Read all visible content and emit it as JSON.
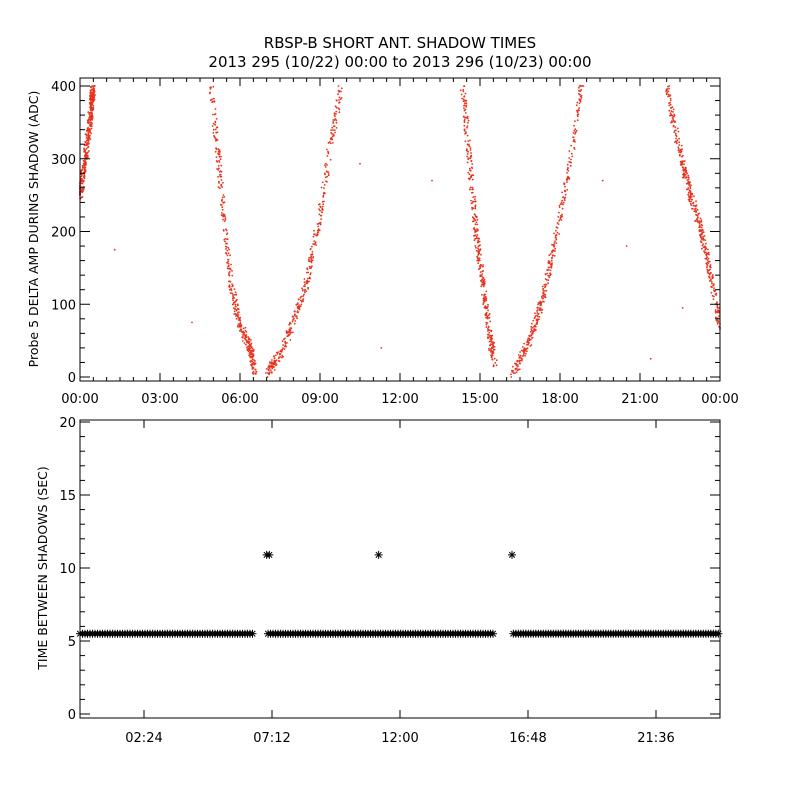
{
  "chart_data": [
    {
      "type": "scatter",
      "title": "RBSP-B SHORT ANT. SHADOW TIMES",
      "subtitle": "2013 295 (10/22) 00:00 to 2013 296 (10/23) 00:00",
      "xlabel": "",
      "ylabel": "Probe 5 DELTA AMP DURING SHADOW (ADC)",
      "xlim": [
        0,
        24
      ],
      "ylim": [
        0,
        400
      ],
      "x_unit": "hours",
      "xticks": [
        0,
        3,
        6,
        9,
        12,
        15,
        18,
        21,
        24
      ],
      "xtick_labels": [
        "00:00",
        "03:00",
        "06:00",
        "09:00",
        "12:00",
        "15:00",
        "18:00",
        "21:00",
        "00:00"
      ],
      "yticks": [
        0,
        100,
        200,
        300,
        400
      ],
      "ytick_labels": [
        "0",
        "100",
        "200",
        "300",
        "400"
      ],
      "grid": false,
      "marker": "dot",
      "color": "#e8321e",
      "series": [
        {
          "x": [
            0.0,
            0.2,
            0.4,
            0.5
          ],
          "y": [
            250,
            300,
            360,
            400
          ]
        },
        {
          "x": [
            4.9,
            5.2,
            5.45,
            5.7,
            6.0,
            6.4,
            6.55
          ],
          "y": [
            400,
            300,
            200,
            120,
            70,
            40,
            5
          ]
        },
        {
          "x": [
            7.0,
            7.5,
            8.0,
            8.5,
            9.0,
            9.4,
            9.8
          ],
          "y": [
            5,
            30,
            75,
            130,
            220,
            320,
            400
          ]
        },
        {
          "x": [
            14.35,
            14.6,
            14.85,
            15.1,
            15.35,
            15.55
          ],
          "y": [
            400,
            300,
            200,
            130,
            60,
            20
          ]
        },
        {
          "x": [
            16.25,
            16.8,
            17.3,
            17.8,
            18.3,
            18.8
          ],
          "y": [
            5,
            45,
            100,
            180,
            280,
            400
          ]
        },
        {
          "x": [
            22.0,
            22.5,
            22.9,
            23.3,
            23.7,
            24.0
          ],
          "y": [
            400,
            310,
            250,
            200,
            130,
            70
          ]
        }
      ],
      "outliers": {
        "x": [
          1.3,
          4.2,
          10.5,
          11.3,
          13.2,
          19.6,
          20.5,
          21.4,
          22.6
        ],
        "y": [
          175,
          75,
          293,
          40,
          270,
          270,
          180,
          25,
          95
        ]
      }
    },
    {
      "type": "scatter",
      "title": "",
      "xlabel": "",
      "ylabel": "TIME BETWEEN SHADOWS (SEC)",
      "xlim": [
        0,
        24
      ],
      "ylim": [
        0,
        20
      ],
      "x_unit": "hours",
      "xticks": [
        2.4,
        7.2,
        12.0,
        16.8,
        21.6
      ],
      "xtick_labels": [
        "02:24",
        "07:12",
        "12:00",
        "16:48",
        "21:36"
      ],
      "yticks": [
        0,
        5,
        10,
        15,
        20
      ],
      "ytick_labels": [
        "0",
        "5",
        "10",
        "15",
        "20"
      ],
      "grid": false,
      "marker": "asterisk",
      "color": "#000000",
      "baseline_value": 5.5,
      "baseline_segments": [
        [
          0.0,
          6.55
        ],
        [
          7.05,
          15.55
        ],
        [
          16.25,
          24.0
        ]
      ],
      "points": {
        "x": [
          7.0,
          7.1,
          11.2,
          16.2
        ],
        "y": [
          10.9,
          10.9,
          10.9,
          10.9
        ]
      }
    }
  ]
}
